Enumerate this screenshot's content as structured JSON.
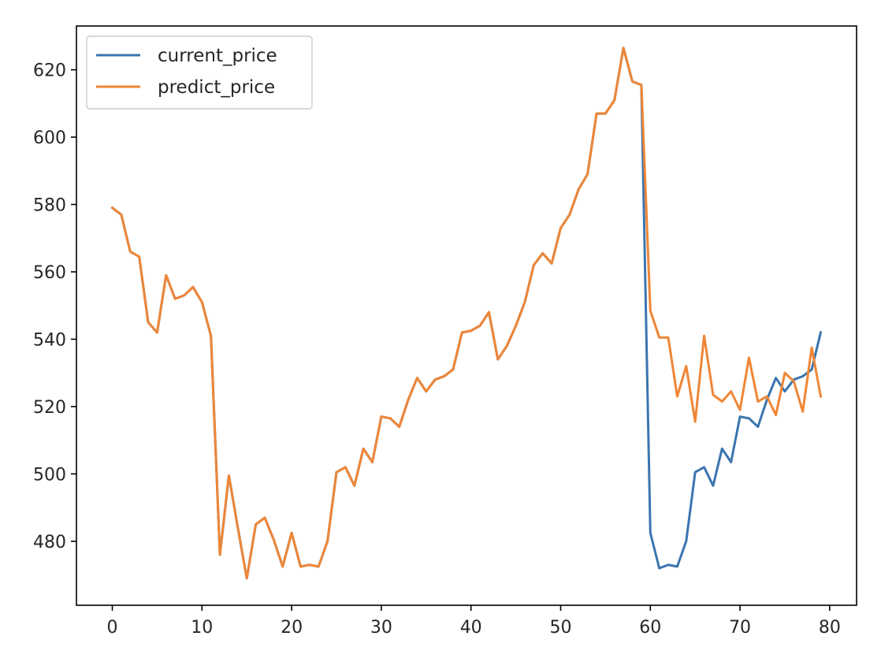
{
  "chart_data": {
    "type": "line",
    "title": "",
    "xlabel": "",
    "ylabel": "",
    "xlim": [
      -4,
      83
    ],
    "ylim": [
      461,
      633
    ],
    "xticks": [
      0,
      10,
      20,
      30,
      40,
      50,
      60,
      70,
      80
    ],
    "yticks": [
      480,
      500,
      520,
      540,
      560,
      580,
      600,
      620
    ],
    "grid": false,
    "legend_position": "top-left",
    "series": [
      {
        "name": "current_price",
        "color": "#3b75af",
        "x": [
          0,
          1,
          2,
          3,
          4,
          5,
          6,
          7,
          8,
          9,
          10,
          11,
          12,
          13,
          14,
          15,
          16,
          17,
          18,
          19,
          20,
          21,
          22,
          23,
          24,
          25,
          26,
          27,
          28,
          29,
          30,
          31,
          32,
          33,
          34,
          35,
          36,
          37,
          38,
          39,
          40,
          41,
          42,
          43,
          44,
          45,
          46,
          47,
          48,
          49,
          50,
          51,
          52,
          53,
          54,
          55,
          56,
          57,
          58,
          59,
          60,
          61,
          62,
          63,
          64,
          65,
          66,
          67,
          68,
          69,
          70,
          71,
          72,
          73,
          74,
          75,
          76,
          77,
          78,
          79
        ],
        "values": [
          579,
          577,
          566,
          564.5,
          545,
          542,
          559,
          552,
          553,
          555.5,
          551,
          541,
          476,
          499.5,
          484,
          469,
          485,
          487,
          480.5,
          472.5,
          482.5,
          472.5,
          473,
          472.5,
          480,
          500.5,
          502,
          496.5,
          507.5,
          503.5,
          517,
          516.5,
          514,
          522,
          528.5,
          524.5,
          528,
          529,
          531,
          542,
          542.5,
          544,
          548,
          534,
          538,
          544,
          551,
          562,
          565.5,
          562.5,
          573,
          577,
          584.5,
          589,
          607,
          607,
          611,
          626.5,
          616.5,
          615.5,
          482.5,
          472,
          473,
          472.5,
          480,
          500.5,
          502,
          496.5,
          507.5,
          503.5,
          517,
          516.5,
          514,
          522,
          528.5,
          524.5,
          528,
          529,
          531,
          542
        ]
      },
      {
        "name": "predict_price",
        "color": "#ef8636",
        "x": [
          0,
          1,
          2,
          3,
          4,
          5,
          6,
          7,
          8,
          9,
          10,
          11,
          12,
          13,
          14,
          15,
          16,
          17,
          18,
          19,
          20,
          21,
          22,
          23,
          24,
          25,
          26,
          27,
          28,
          29,
          30,
          31,
          32,
          33,
          34,
          35,
          36,
          37,
          38,
          39,
          40,
          41,
          42,
          43,
          44,
          45,
          46,
          47,
          48,
          49,
          50,
          51,
          52,
          53,
          54,
          55,
          56,
          57,
          58,
          59,
          60,
          61,
          62,
          63,
          64,
          65,
          66,
          67,
          68,
          69,
          70,
          71,
          72,
          73,
          74,
          75,
          76,
          77,
          78,
          79
        ],
        "values": [
          579,
          577,
          566,
          564.5,
          545,
          542,
          559,
          552,
          553,
          555.5,
          551,
          541,
          476,
          499.5,
          484,
          469,
          485,
          487,
          480.5,
          472.5,
          482.5,
          472.5,
          473,
          472.5,
          480,
          500.5,
          502,
          496.5,
          507.5,
          503.5,
          517,
          516.5,
          514,
          522,
          528.5,
          524.5,
          528,
          529,
          531,
          542,
          542.5,
          544,
          548,
          534,
          538,
          544,
          551,
          562,
          565.5,
          562.5,
          573,
          577,
          584.5,
          589,
          607,
          607,
          611,
          626.5,
          616.5,
          615.5,
          548.5,
          540.5,
          540.5,
          523,
          532,
          515.5,
          541,
          523.5,
          521.5,
          524.5,
          519,
          534.5,
          521.5,
          523,
          517.5,
          530,
          527.5,
          518.5,
          537.5,
          523
        ]
      }
    ]
  }
}
